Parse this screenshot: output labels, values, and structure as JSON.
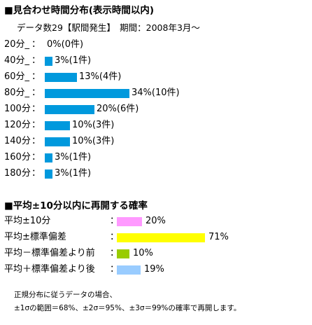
{
  "header": {
    "title": "■見合わせ時間分布(表示時間以内)",
    "subtitle": "データ数29【駅間発生】　期間：2008年3月～"
  },
  "chart_data": [
    {
      "type": "bar",
      "orientation": "horizontal",
      "title": "■見合わせ時間分布(表示時間以内)",
      "categories": [
        "20分_",
        "40分_",
        "60分_",
        "80分_",
        "100分",
        "120分",
        "140分",
        "160分",
        "180分"
      ],
      "values": [
        0,
        3,
        13,
        34,
        20,
        10,
        10,
        3,
        3
      ],
      "counts": [
        0,
        1,
        4,
        10,
        6,
        3,
        3,
        1,
        1
      ],
      "value_labels": [
        "0%(0件)",
        "3%(1件)",
        "13%(4件)",
        "34%(10件)",
        "20%(6件)",
        "10%(3件)",
        "10%(3件)",
        "3%(1件)",
        "3%(1件)"
      ],
      "separator": "：",
      "unit": "%",
      "color": "#0099dd"
    },
    {
      "type": "bar",
      "orientation": "horizontal",
      "title": "■平均±10分以内に再開する確率",
      "categories": [
        "平均±10分",
        "平均±標準偏差",
        "平均－標準偏差より前",
        "平均＋標準偏差より後"
      ],
      "values": [
        20,
        71,
        10,
        19
      ],
      "value_labels": [
        "20%",
        "71%",
        "10%",
        "19%"
      ],
      "separator": "：",
      "unit": "%",
      "colors": [
        "#ff99ff",
        "#ffff00",
        "#99cc00",
        "#99ccff"
      ]
    }
  ],
  "footnote": {
    "line1": "正規分布に従うデータの場合、",
    "line2": "±1σの範囲＝68%、±2σ＝95%、±3σ＝99%の確率で再開します。"
  }
}
